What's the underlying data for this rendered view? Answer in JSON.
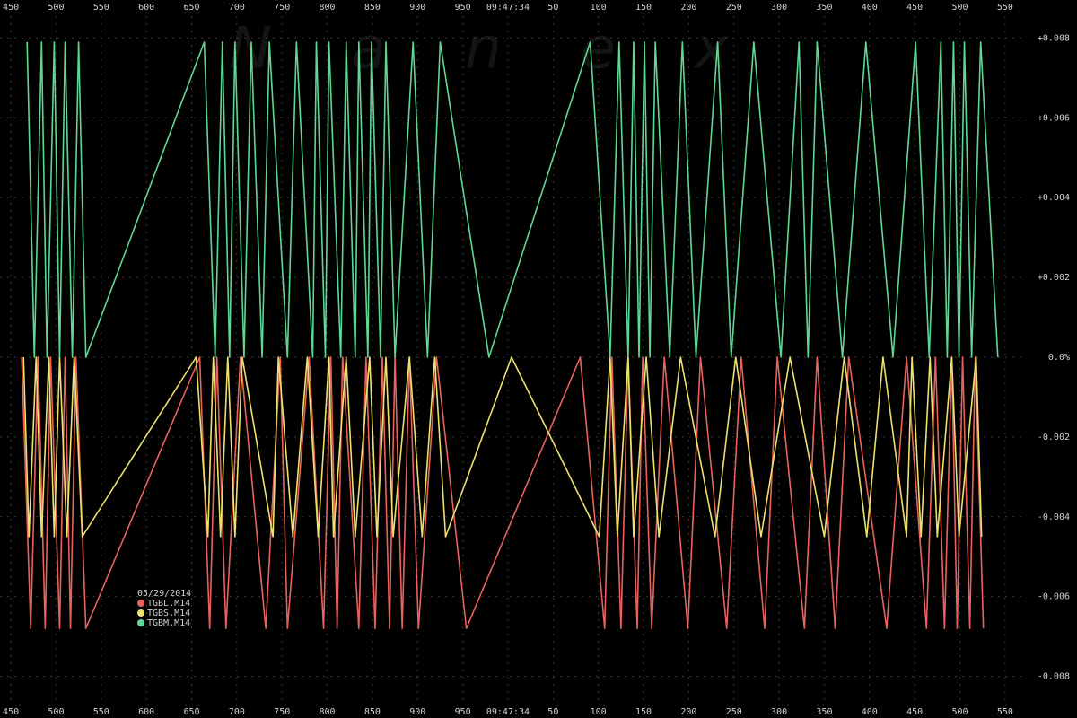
{
  "chart_data": {
    "type": "line",
    "watermark": "Nanex",
    "legend_title": "05/29/2014",
    "legend": "bottom-left",
    "grid": true,
    "xlim": [
      438,
      1570
    ],
    "xticks": [
      450,
      500,
      550,
      600,
      650,
      700,
      750,
      800,
      850,
      900,
      950,
      {
        "value": 1000,
        "label": "09:47:34"
      },
      {
        "value": 1050,
        "label": "50"
      },
      {
        "value": 1100,
        "label": "100"
      },
      {
        "value": 1150,
        "label": "150"
      },
      {
        "value": 1200,
        "label": "200"
      },
      {
        "value": 1250,
        "label": "250"
      },
      {
        "value": 1300,
        "label": "300"
      },
      {
        "value": 1350,
        "label": "350"
      },
      {
        "value": 1400,
        "label": "400"
      },
      {
        "value": 1450,
        "label": "450"
      },
      {
        "value": 1500,
        "label": "500"
      },
      {
        "value": 1550,
        "label": "550"
      }
    ],
    "ylim": [
      -0.009,
      0.009
    ],
    "yticks": [
      {
        "value": 0.008,
        "label": "+0.008"
      },
      {
        "value": 0.006,
        "label": "+0.006"
      },
      {
        "value": 0.004,
        "label": "+0.004"
      },
      {
        "value": 0.002,
        "label": "+0.002"
      },
      {
        "value": 0,
        "label": "0.0%"
      },
      -0.002,
      -0.004,
      -0.006,
      -0.008
    ],
    "series": [
      {
        "name": "TGBL.M14",
        "color": "#e8625e",
        "x": [
          462,
          472,
          480,
          488,
          494,
          504,
          510,
          516,
          522,
          533,
          659,
          670,
          678,
          688,
          704,
          732,
          748,
          756,
          780,
          796,
          804,
          811,
          817,
          835,
          843,
          853,
          861,
          869,
          875,
          883,
          891,
          901,
          921,
          954,
          1080,
          1107,
          1115,
          1125,
          1133,
          1143,
          1149,
          1159,
          1173,
          1199,
          1213,
          1242,
          1258,
          1284,
          1298,
          1328,
          1342,
          1362,
          1377,
          1419,
          1441,
          1463,
          1473,
          1483,
          1491,
          1497,
          1503,
          1511,
          1517,
          1526
        ],
        "values": [
          0,
          -0.0068,
          0,
          -0.0068,
          0,
          -0.0068,
          0,
          -0.0068,
          0,
          -0.0068,
          0,
          -0.0068,
          0,
          -0.0068,
          0,
          -0.0068,
          0,
          -0.0068,
          0,
          -0.0068,
          0,
          -0.0068,
          0,
          -0.0068,
          0,
          -0.0068,
          0,
          -0.0068,
          0,
          -0.0068,
          0,
          -0.0068,
          0,
          -0.0068,
          0,
          -0.0068,
          0,
          -0.0068,
          0,
          -0.0068,
          0,
          -0.0068,
          0,
          -0.0068,
          0,
          -0.0068,
          0,
          -0.0068,
          0,
          -0.0068,
          0,
          -0.0068,
          0,
          -0.0068,
          0,
          -0.0068,
          0,
          -0.0068,
          0,
          -0.0068,
          0,
          -0.0068,
          0,
          -0.0068
        ]
      },
      {
        "name": "TGBS.M14",
        "color": "#ece36e",
        "x": [
          464,
          470,
          478,
          484,
          492,
          498,
          504,
          512,
          520,
          529,
          655,
          668,
          674,
          682,
          690,
          698,
          706,
          740,
          746,
          762,
          778,
          790,
          802,
          807,
          821,
          831,
          847,
          855,
          865,
          873,
          891,
          905,
          919,
          931,
          1004,
          1101,
          1113,
          1121,
          1133,
          1139,
          1153,
          1167,
          1191,
          1229,
          1252,
          1280,
          1312,
          1350,
          1372,
          1397,
          1415,
          1441,
          1447,
          1457,
          1467,
          1475,
          1491,
          1499,
          1518,
          1524
        ],
        "values": [
          0,
          -0.0045,
          0,
          -0.0045,
          0,
          -0.0045,
          0,
          -0.0045,
          0,
          -0.0045,
          0,
          -0.0045,
          0,
          -0.0045,
          0,
          -0.0045,
          0,
          -0.0045,
          0,
          -0.0045,
          0,
          -0.0045,
          0,
          -0.0045,
          0,
          -0.0045,
          0,
          -0.0045,
          0,
          -0.0045,
          0,
          -0.0045,
          0,
          -0.0045,
          0,
          -0.0045,
          0,
          -0.0045,
          0,
          -0.0045,
          0,
          -0.0045,
          0,
          -0.0045,
          0,
          -0.0045,
          0,
          -0.0045,
          0,
          -0.0045,
          0,
          -0.0045,
          0,
          -0.0045,
          0,
          -0.0045,
          0,
          -0.0045,
          0,
          -0.0045
        ]
      },
      {
        "name": "TGBM.M14",
        "color": "#5fd894",
        "x": [
          468,
          476,
          484,
          490,
          498,
          504,
          510,
          518,
          525,
          533,
          664,
          676,
          684,
          692,
          698,
          708,
          716,
          728,
          736,
          756,
          766,
          784,
          788,
          798,
          802,
          815,
          821,
          831,
          835,
          845,
          849,
          859,
          865,
          875,
          895,
          911,
          925,
          979,
          1091,
          1113,
          1123,
          1133,
          1139,
          1145,
          1151,
          1157,
          1163,
          1179,
          1193,
          1208,
          1232,
          1247,
          1272,
          1302,
          1322,
          1332,
          1342,
          1370,
          1396,
          1426,
          1451,
          1466,
          1479,
          1486,
          1493,
          1499,
          1505,
          1513,
          1523,
          1542
        ],
        "values": [
          0.0079,
          0,
          0.0079,
          0,
          0.0079,
          0,
          0.0079,
          0,
          0.0079,
          0,
          0.0079,
          0,
          0.0079,
          0,
          0.0079,
          0,
          0.0079,
          0,
          0.0079,
          0,
          0.0079,
          0,
          0.0079,
          0,
          0.0079,
          0,
          0.0079,
          0,
          0.0079,
          0,
          0.0079,
          0,
          0.0079,
          0,
          0.0079,
          0,
          0.0079,
          0,
          0.0079,
          0,
          0.0079,
          0,
          0.0079,
          0,
          0.0079,
          0,
          0.0079,
          0,
          0.0079,
          0,
          0.0079,
          0,
          0.0079,
          0,
          0.0079,
          0,
          0.0079,
          0,
          0.0079,
          0,
          0.0079,
          0,
          0.0079,
          0,
          0.0079,
          0,
          0.0079,
          0,
          0.0079,
          0
        ]
      }
    ]
  }
}
